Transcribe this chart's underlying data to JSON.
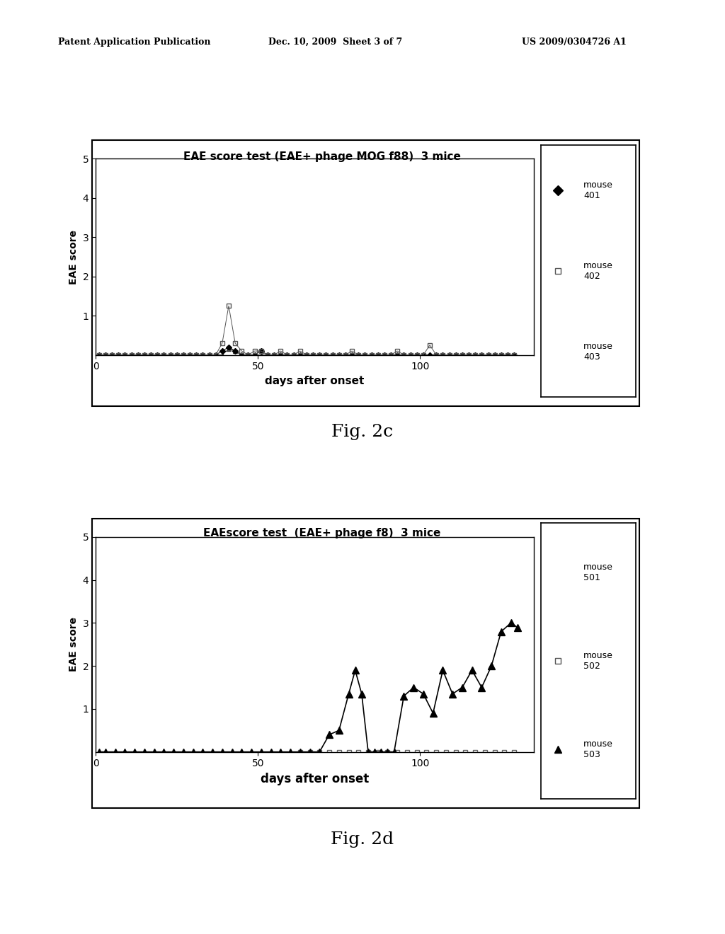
{
  "fig2c": {
    "title": "EAE score test (EAE+ phage MOG f88)  3 mice",
    "xlabel": "days after onset",
    "ylabel": "EAE score",
    "xlim": [
      0,
      135
    ],
    "ylim": [
      0,
      5
    ],
    "xticks": [
      0,
      50,
      100
    ],
    "yticks": [
      1,
      2,
      3,
      4,
      5
    ],
    "mouse401": {
      "label": "mouse\n401",
      "marker": "D",
      "markersize": 4,
      "color": "#000000",
      "x": [
        1,
        3,
        5,
        7,
        9,
        11,
        13,
        15,
        17,
        19,
        21,
        23,
        25,
        27,
        29,
        31,
        33,
        35,
        37,
        39,
        41,
        43,
        45,
        47,
        49,
        51,
        53,
        55,
        57,
        59,
        61,
        63,
        65,
        67,
        69,
        71,
        73,
        75,
        77,
        79,
        81,
        83,
        85,
        87,
        89,
        91,
        93,
        95,
        97,
        99,
        101,
        103,
        105,
        107,
        109,
        111,
        113,
        115,
        117,
        119,
        121,
        123,
        125,
        127,
        129
      ],
      "y": [
        0,
        0,
        0,
        0,
        0,
        0,
        0,
        0,
        0,
        0,
        0,
        0,
        0,
        0,
        0,
        0,
        0,
        0,
        0,
        0.1,
        0.2,
        0.1,
        0,
        0,
        0,
        0.1,
        0,
        0,
        0,
        0,
        0,
        0,
        0,
        0,
        0,
        0,
        0,
        0,
        0,
        0,
        0,
        0,
        0,
        0,
        0,
        0,
        0,
        0,
        0,
        0,
        0,
        0,
        0,
        0,
        0,
        0,
        0,
        0,
        0,
        0,
        0,
        0,
        0,
        0,
        0
      ]
    },
    "mouse402": {
      "label": "mouse\n402",
      "marker": "s",
      "markersize": 5,
      "color": "#555555",
      "x": [
        1,
        3,
        5,
        7,
        9,
        11,
        13,
        15,
        17,
        19,
        21,
        23,
        25,
        27,
        29,
        31,
        33,
        35,
        37,
        39,
        41,
        43,
        45,
        47,
        49,
        51,
        53,
        55,
        57,
        59,
        61,
        63,
        65,
        67,
        69,
        71,
        73,
        75,
        77,
        79,
        81,
        83,
        85,
        87,
        89,
        91,
        93,
        95,
        97,
        99,
        101,
        103,
        105,
        107,
        109,
        111,
        113,
        115,
        117,
        119,
        121,
        123,
        125,
        127,
        129
      ],
      "y": [
        0,
        0,
        0,
        0,
        0,
        0,
        0,
        0,
        0,
        0,
        0,
        0,
        0,
        0,
        0,
        0,
        0,
        0,
        0,
        0.3,
        1.25,
        0.3,
        0.1,
        0,
        0.1,
        0.1,
        0,
        0,
        0.1,
        0,
        0,
        0.1,
        0,
        0,
        0,
        0,
        0,
        0,
        0,
        0.1,
        0,
        0,
        0,
        0,
        0,
        0,
        0.1,
        0,
        0,
        0,
        0,
        0.25,
        0,
        0,
        0,
        0,
        0,
        0,
        0,
        0,
        0,
        0,
        0,
        0,
        0
      ]
    },
    "mouse403": {
      "label": "mouse\n403",
      "marker": "^",
      "markersize": 4,
      "color": "#333333",
      "x": [
        1,
        3,
        5,
        7,
        9,
        11,
        13,
        15,
        17,
        19,
        21,
        23,
        25,
        27,
        29,
        31,
        33,
        35,
        37,
        39,
        41,
        43,
        45,
        47,
        49,
        51,
        53,
        55,
        57,
        59,
        61,
        63,
        65,
        67,
        69,
        71,
        73,
        75,
        77,
        79,
        81,
        83,
        85,
        87,
        89,
        91,
        93,
        95,
        97,
        99,
        101,
        103,
        105,
        107,
        109,
        111,
        113,
        115,
        117,
        119,
        121,
        123,
        125,
        127,
        129
      ],
      "y": [
        0,
        0,
        0,
        0,
        0,
        0,
        0,
        0,
        0,
        0,
        0,
        0,
        0,
        0,
        0,
        0,
        0,
        0,
        0,
        0,
        0.15,
        0.1,
        0,
        0,
        0,
        0,
        0,
        0,
        0,
        0,
        0,
        0,
        0,
        0,
        0,
        0,
        0,
        0,
        0,
        0,
        0,
        0,
        0,
        0,
        0,
        0,
        0,
        0,
        0,
        0,
        0,
        0,
        0,
        0,
        0,
        0,
        0,
        0,
        0,
        0,
        0,
        0,
        0,
        0,
        0
      ]
    }
  },
  "fig2d": {
    "title": "EAEscore test  (EAE+ phage f8)  3 mice",
    "xlabel": "days after onset",
    "ylabel": "EAE score",
    "xlim": [
      0,
      135
    ],
    "ylim": [
      0,
      5
    ],
    "xticks": [
      0,
      50,
      100
    ],
    "yticks": [
      1,
      2,
      3,
      4,
      5
    ],
    "mouse501": {
      "label": "mouse\n501",
      "marker": "None",
      "markersize": 0,
      "color": "#888888",
      "x": [
        1,
        130
      ],
      "y": [
        0,
        0
      ]
    },
    "mouse502": {
      "label": "mouse\n502",
      "marker": "s",
      "markersize": 5,
      "color": "#666666",
      "x": [
        63,
        66,
        69,
        72,
        75,
        78,
        81,
        84,
        87,
        90,
        93,
        96,
        99,
        102,
        105,
        108,
        111,
        114,
        117,
        120,
        123,
        126,
        129
      ],
      "y": [
        0,
        0,
        0,
        0,
        0,
        0,
        0,
        0,
        0,
        0,
        0,
        0,
        0,
        0,
        0,
        0,
        0,
        0,
        0,
        0,
        0,
        0,
        0
      ]
    },
    "mouse503": {
      "label": "mouse\n503",
      "marker": "^",
      "markersize": 7,
      "color": "#000000",
      "x": [
        1,
        3,
        6,
        9,
        12,
        15,
        18,
        21,
        24,
        27,
        30,
        33,
        36,
        39,
        42,
        45,
        48,
        51,
        54,
        57,
        60,
        63,
        66,
        69,
        72,
        75,
        78,
        80,
        82,
        84,
        86,
        88,
        90,
        92,
        95,
        98,
        101,
        104,
        107,
        110,
        113,
        116,
        119,
        122,
        125,
        128,
        130
      ],
      "y": [
        0,
        0,
        0,
        0,
        0,
        0,
        0,
        0,
        0,
        0,
        0,
        0,
        0,
        0,
        0,
        0,
        0,
        0,
        0,
        0,
        0,
        0,
        0,
        0,
        0.4,
        0.5,
        1.35,
        1.9,
        1.35,
        0,
        0,
        0,
        0,
        0,
        1.3,
        1.5,
        1.35,
        0.9,
        1.9,
        1.35,
        1.5,
        1.9,
        1.5,
        2.0,
        2.8,
        3.0,
        2.9
      ]
    }
  },
  "header_left": "Patent Application Publication",
  "header_mid": "Dec. 10, 2009  Sheet 3 of 7",
  "header_right": "US 2009/0304726 A1",
  "fig2c_caption": "Fig. 2c",
  "fig2d_caption": "Fig. 2d",
  "background_color": "#ffffff"
}
